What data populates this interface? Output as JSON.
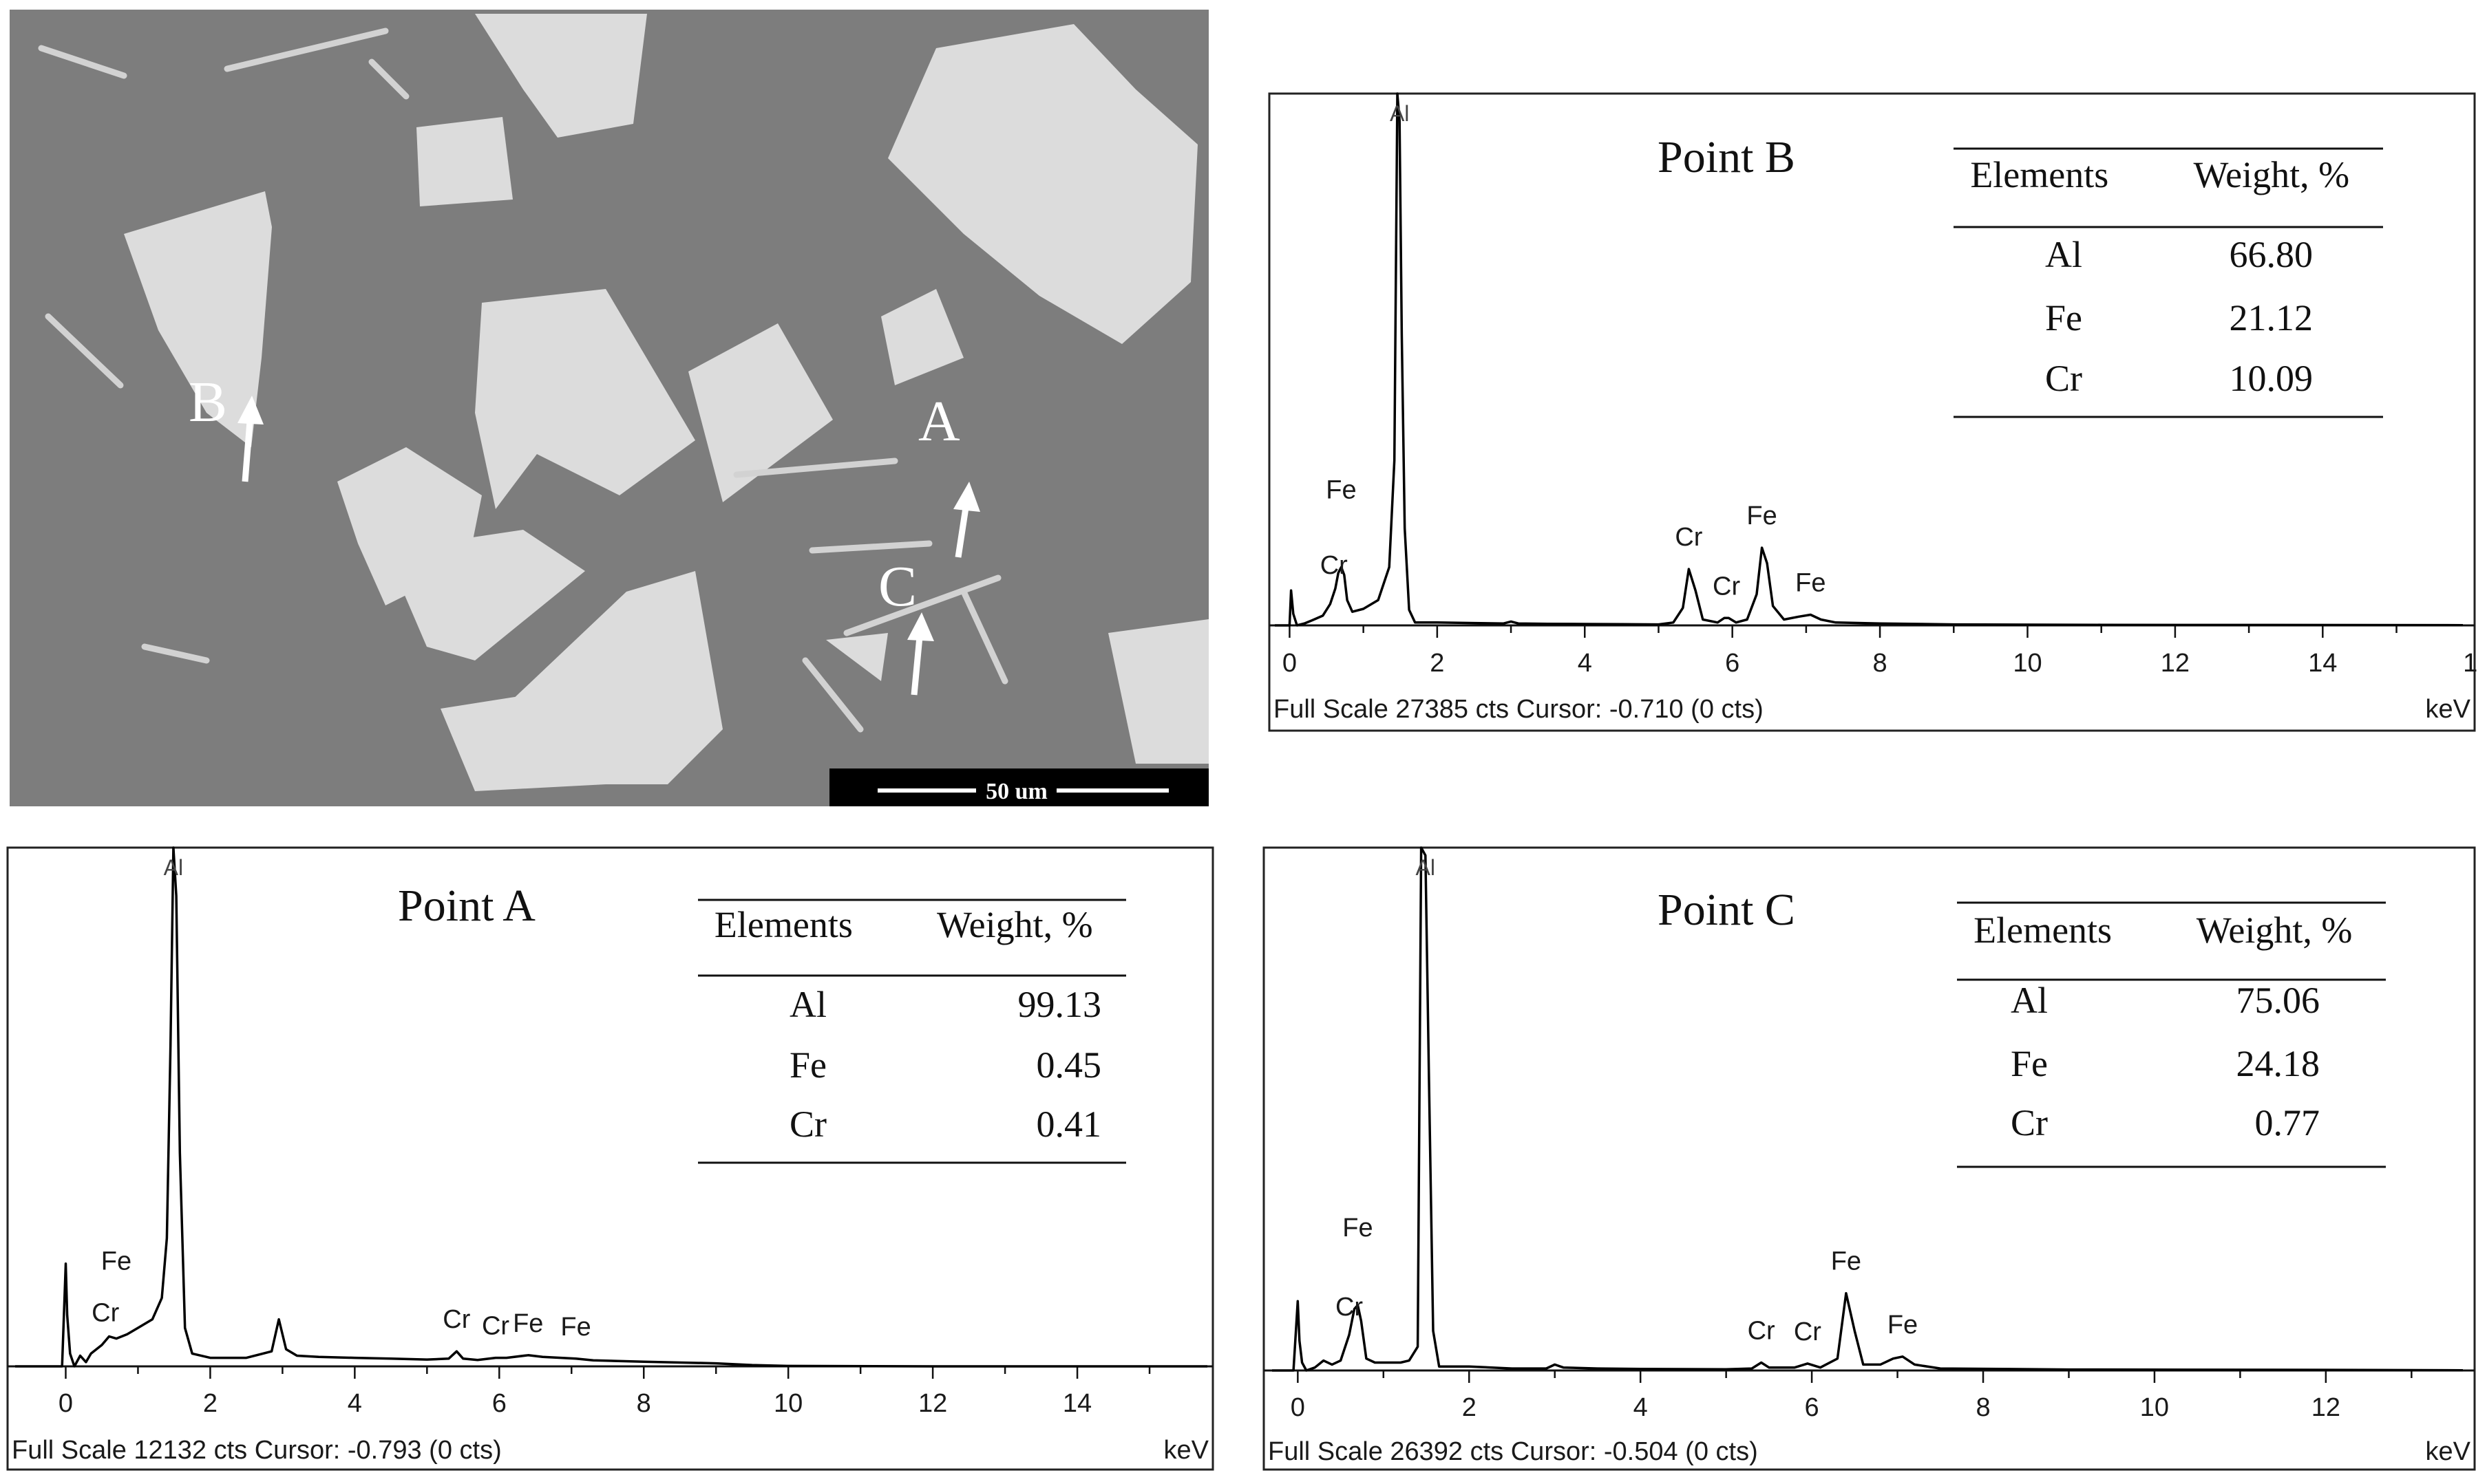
{
  "micrograph": {
    "scale_bar_label": "50 um",
    "point_labels": [
      "A",
      "B",
      "C"
    ]
  },
  "chart_data": [
    {
      "type": "line",
      "title": "Point B",
      "xlabel": "keV",
      "xlim": [
        -0.2,
        15.9
      ],
      "x_ticks": [
        "0",
        "2",
        "4",
        "6",
        "8",
        "10",
        "12",
        "14",
        "1"
      ],
      "footer": "Full Scale 27385 cts Cursor: -0.710  (0 cts)",
      "series": [
        {
          "x": [
            -0.2,
            0.0,
            0.02,
            0.05,
            0.1,
            0.2,
            0.3,
            0.45,
            0.55,
            0.62,
            0.66,
            0.7,
            0.74,
            0.78,
            0.85,
            1.0,
            1.2,
            1.35,
            1.42,
            1.46,
            1.49,
            1.52,
            1.56,
            1.62,
            1.7,
            2.0,
            2.5,
            2.9,
            3.0,
            3.1,
            3.5,
            4.0,
            4.5,
            5.0,
            5.2,
            5.33,
            5.41,
            5.5,
            5.6,
            5.8,
            5.89,
            5.95,
            6.05,
            6.2,
            6.33,
            6.4,
            6.47,
            6.55,
            6.7,
            6.9,
            7.06,
            7.2,
            7.4,
            8.0,
            9.0,
            11.0,
            13.0,
            15.9
          ],
          "y": [
            0,
            0,
            1800,
            600,
            0,
            100,
            250,
            500,
            1100,
            1900,
            2700,
            3000,
            2600,
            1300,
            700,
            850,
            1300,
            3000,
            8500,
            27385,
            26000,
            15000,
            5000,
            800,
            150,
            150,
            120,
            100,
            200,
            100,
            80,
            70,
            60,
            50,
            150,
            900,
            2900,
            1800,
            300,
            150,
            380,
            380,
            150,
            300,
            1600,
            4000,
            3200,
            1000,
            300,
            450,
            550,
            300,
            150,
            100,
            50,
            30,
            20,
            10
          ]
        }
      ],
      "peak_labels": [
        {
          "text": "Al",
          "x": 1.49
        },
        {
          "text": "Fe",
          "x": 0.7
        },
        {
          "text": "Cr",
          "x": 0.6
        },
        {
          "text": "Cr",
          "x": 5.41
        },
        {
          "text": "Cr",
          "x": 5.92
        },
        {
          "text": "Fe",
          "x": 6.4
        },
        {
          "text": "Fe",
          "x": 7.06
        }
      ],
      "table": {
        "headers": [
          "Elements",
          "Weight, %"
        ],
        "rows": [
          [
            "Al",
            "66.80"
          ],
          [
            "Fe",
            "21.12"
          ],
          [
            "Cr",
            "10.09"
          ]
        ]
      }
    },
    {
      "type": "line",
      "title": "Point A",
      "xlabel": "keV",
      "xlim": [
        -0.7,
        15.8
      ],
      "x_ticks": [
        "0",
        "2",
        "4",
        "6",
        "8",
        "10",
        "12",
        "14"
      ],
      "footer": "Full Scale 12132 cts Cursor: -0.793  (0 cts)",
      "series": [
        {
          "x": [
            -0.7,
            -0.05,
            0.0,
            0.02,
            0.06,
            0.12,
            0.2,
            0.28,
            0.35,
            0.5,
            0.6,
            0.7,
            0.85,
            1.0,
            1.2,
            1.33,
            1.4,
            1.45,
            1.49,
            1.53,
            1.58,
            1.65,
            1.75,
            2.0,
            2.5,
            2.85,
            2.95,
            3.05,
            3.2,
            3.5,
            4.0,
            4.5,
            5.0,
            5.3,
            5.41,
            5.5,
            5.7,
            5.95,
            6.1,
            6.4,
            6.6,
            7.06,
            7.3,
            8.0,
            9.0,
            9.5,
            10.0,
            12.0,
            15.8
          ],
          "y": [
            0,
            0,
            2400,
            1200,
            300,
            0,
            250,
            100,
            300,
            500,
            700,
            650,
            750,
            900,
            1100,
            1600,
            3000,
            7500,
            12132,
            11000,
            5000,
            900,
            300,
            200,
            200,
            350,
            1100,
            400,
            250,
            220,
            200,
            180,
            160,
            180,
            350,
            180,
            150,
            200,
            200,
            260,
            220,
            180,
            140,
            110,
            70,
            30,
            10,
            0,
            0
          ]
        }
      ],
      "peak_labels": [
        {
          "text": "Al",
          "x": 1.49
        },
        {
          "text": "Fe",
          "x": 0.7
        },
        {
          "text": "Cr",
          "x": 0.55
        },
        {
          "text": "Cr",
          "x": 5.41
        },
        {
          "text": "Cr",
          "x": 5.95
        },
        {
          "text": "Fe",
          "x": 6.4
        },
        {
          "text": "Fe",
          "x": 7.06
        }
      ],
      "table": {
        "headers": [
          "Elements",
          "Weight, %"
        ],
        "rows": [
          [
            "Al",
            "99.13"
          ],
          [
            "Fe",
            "0.45"
          ],
          [
            "Cr",
            "0.41"
          ]
        ]
      }
    },
    {
      "type": "line",
      "title": "Point C",
      "xlabel": "keV",
      "xlim": [
        -0.3,
        13.6
      ],
      "x_ticks": [
        "0",
        "2",
        "4",
        "6",
        "8",
        "10",
        "12"
      ],
      "footer": "Full Scale 26392 cts Cursor: -0.504  (0 cts)",
      "series": [
        {
          "x": [
            -0.3,
            -0.05,
            0.0,
            0.02,
            0.05,
            0.1,
            0.2,
            0.3,
            0.4,
            0.5,
            0.6,
            0.66,
            0.7,
            0.74,
            0.8,
            0.9,
            1.0,
            1.2,
            1.3,
            1.4,
            1.44,
            1.49,
            1.53,
            1.58,
            1.65,
            2.0,
            2.5,
            2.9,
            3.0,
            3.1,
            3.5,
            4.0,
            5.0,
            5.3,
            5.41,
            5.5,
            5.8,
            5.95,
            6.1,
            6.3,
            6.4,
            6.5,
            6.6,
            6.8,
            6.95,
            7.06,
            7.2,
            7.5,
            9.0,
            12.0,
            13.6
          ],
          "y": [
            0,
            0,
            3500,
            1500,
            400,
            0,
            150,
            500,
            300,
            500,
            1800,
            3100,
            3300,
            2500,
            600,
            400,
            400,
            400,
            500,
            1200,
            26392,
            26000,
            15000,
            2000,
            200,
            200,
            100,
            100,
            300,
            150,
            100,
            80,
            60,
            100,
            400,
            150,
            150,
            350,
            150,
            600,
            3900,
            2000,
            300,
            300,
            600,
            700,
            300,
            100,
            50,
            30,
            10
          ]
        }
      ],
      "peak_labels": [
        {
          "text": "Al",
          "x": 1.49
        },
        {
          "text": "Fe",
          "x": 0.7
        },
        {
          "text": "Cr",
          "x": 0.6
        },
        {
          "text": "Cr",
          "x": 5.41
        },
        {
          "text": "Cr",
          "x": 5.95
        },
        {
          "text": "Fe",
          "x": 6.4
        },
        {
          "text": "Fe",
          "x": 7.06
        }
      ],
      "table": {
        "headers": [
          "Elements",
          "Weight, %"
        ],
        "rows": [
          [
            "Al",
            "75.06"
          ],
          [
            "Fe",
            "24.18"
          ],
          [
            "Cr",
            "0.77"
          ]
        ]
      }
    }
  ]
}
